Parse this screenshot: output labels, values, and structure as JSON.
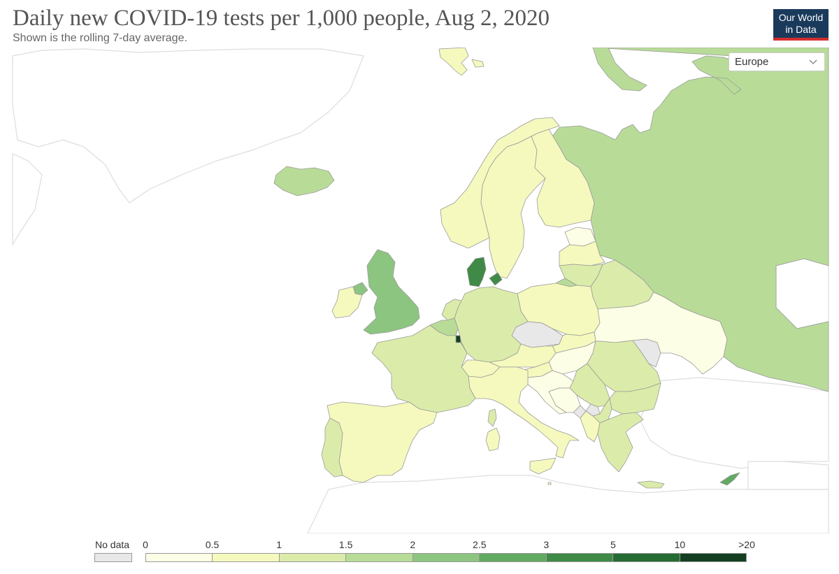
{
  "header": {
    "title": "Daily new COVID-19 tests per 1,000 people, Aug 2, 2020",
    "subtitle": "Shown is the rolling 7-day average.",
    "logo_line1": "Our World",
    "logo_line2": "in Data"
  },
  "region_select": {
    "value": "Europe"
  },
  "legend": {
    "no_data_label": "No data",
    "no_data_color": "#e8e8e8",
    "ticks": [
      "0",
      "0.5",
      "1",
      "1.5",
      "2",
      "2.5",
      "3",
      "5",
      "10",
      ">20"
    ],
    "bins": [
      {
        "range": "0-0.5",
        "color": "#fdfee6"
      },
      {
        "range": "0.5-1",
        "color": "#f5f9bd"
      },
      {
        "range": "1-1.5",
        "color": "#dbecaa"
      },
      {
        "range": "1.5-2",
        "color": "#b8dc98"
      },
      {
        "range": "2-2.5",
        "color": "#8cc580"
      },
      {
        "range": "2.5-3",
        "color": "#62a962"
      },
      {
        "range": "3-5",
        "color": "#3f8a46"
      },
      {
        "range": "5-10",
        "color": "#256b34"
      },
      {
        "range": "10-20",
        "color": "#143f20"
      }
    ]
  },
  "countries": [
    {
      "name": "Iceland",
      "bin": "1.5-2"
    },
    {
      "name": "United Kingdom",
      "bin": "2-2.5"
    },
    {
      "name": "Ireland",
      "bin": "0.5-1"
    },
    {
      "name": "Norway",
      "bin": "0.5-1"
    },
    {
      "name": "Sweden",
      "bin": "0.5-1"
    },
    {
      "name": "Finland",
      "bin": "0.5-1"
    },
    {
      "name": "Russia",
      "bin": "1.5-2"
    },
    {
      "name": "Denmark",
      "bin": "3-5"
    },
    {
      "name": "Luxembourg",
      "bin": "10-20"
    },
    {
      "name": "Belgium",
      "bin": "1.5-2"
    },
    {
      "name": "Netherlands",
      "bin": "1-1.5"
    },
    {
      "name": "Germany",
      "bin": "1-1.5"
    },
    {
      "name": "France",
      "bin": "1-1.5"
    },
    {
      "name": "Spain",
      "bin": "0.5-1"
    },
    {
      "name": "Portugal",
      "bin": "1-1.5"
    },
    {
      "name": "Italy",
      "bin": "0.5-1"
    },
    {
      "name": "Switzerland",
      "bin": "0.5-1"
    },
    {
      "name": "Austria",
      "bin": "0.5-1"
    },
    {
      "name": "Czechia",
      "bin": "no-data"
    },
    {
      "name": "Poland",
      "bin": "0.5-1"
    },
    {
      "name": "Slovakia",
      "bin": "0.5-1"
    },
    {
      "name": "Hungary",
      "bin": "0-0.5"
    },
    {
      "name": "Slovenia",
      "bin": "0.5-1"
    },
    {
      "name": "Croatia",
      "bin": "0-0.5"
    },
    {
      "name": "Bosnia and Herzegovina",
      "bin": "0-0.5"
    },
    {
      "name": "Serbia",
      "bin": "1-1.5"
    },
    {
      "name": "Montenegro",
      "bin": "no-data"
    },
    {
      "name": "Kosovo",
      "bin": "no-data"
    },
    {
      "name": "North Macedonia",
      "bin": "1-1.5"
    },
    {
      "name": "Albania",
      "bin": "0.5-1"
    },
    {
      "name": "Greece",
      "bin": "1-1.5"
    },
    {
      "name": "Bulgaria",
      "bin": "1-1.5"
    },
    {
      "name": "Romania",
      "bin": "1-1.5"
    },
    {
      "name": "Moldova",
      "bin": "no-data"
    },
    {
      "name": "Ukraine",
      "bin": "0-0.5"
    },
    {
      "name": "Belarus",
      "bin": "1-1.5"
    },
    {
      "name": "Lithuania",
      "bin": "1-1.5"
    },
    {
      "name": "Latvia",
      "bin": "0.5-1"
    },
    {
      "name": "Estonia",
      "bin": "0-0.5"
    },
    {
      "name": "Kaliningrad (Russia)",
      "bin": "1.5-2"
    },
    {
      "name": "Cyprus",
      "bin": "2.5-3"
    },
    {
      "name": "Malta",
      "bin": "0.5-1"
    },
    {
      "name": "Crete (Greece)",
      "bin": "1-1.5"
    },
    {
      "name": "Sicily (Italy)",
      "bin": "0.5-1"
    },
    {
      "name": "Sardinia (Italy)",
      "bin": "0.5-1"
    },
    {
      "name": "Corsica (France)",
      "bin": "1-1.5"
    },
    {
      "name": "Svalbard (Norway)",
      "bin": "0.5-1"
    },
    {
      "name": "Northern Ireland (UK)",
      "bin": "2-2.5"
    }
  ]
}
